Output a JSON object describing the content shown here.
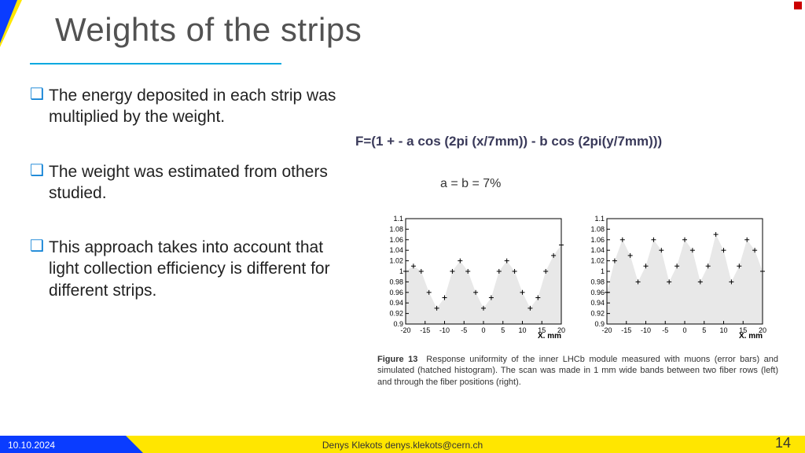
{
  "title": "Weights of the strips",
  "bullets": [
    "The energy deposited in each strip was multiplied by the weight.",
    "The weight was estimated from others studied.",
    "This approach takes into account that light collection efficiency is different for different strips."
  ],
  "formula": "F=(1 + - a cos (2pi (x/7mm)) - b cos (2pi(y/7mm)))",
  "param_text": "a = b = 7%",
  "caption_label": "Figure 13",
  "caption_body": "Response uniformity of the inner LHCb module measured with muons (error bars) and simulated (hatched histogram). The scan was made in 1 mm wide bands between two fiber rows (left) and through the fiber positions (right).",
  "footer": {
    "date": "10.10.2024",
    "author": "Denys Klekots denys.klekots@cern.ch",
    "page": "14"
  },
  "chart_common": {
    "ylim": [
      0.9,
      1.1
    ],
    "yticks": [
      0.9,
      0.92,
      0.94,
      0.96,
      0.98,
      1,
      1.02,
      1.04,
      1.06,
      1.08,
      1.1
    ],
    "xlim": [
      -20,
      20
    ],
    "xticks": [
      -20,
      -15,
      -10,
      -5,
      0,
      5,
      10,
      15,
      20
    ],
    "xlabel": "X. mm",
    "frame_color": "#000000",
    "tick_fontsize": 9,
    "data_color": "#000000",
    "fill_color": "#e6e6e6",
    "fill_opacity": 0.9,
    "marker": "+",
    "marker_size": 3
  },
  "chart_left": {
    "x": [
      -20,
      -18,
      -16,
      -14,
      -12,
      -10,
      -8,
      -6,
      -4,
      -2,
      0,
      2,
      4,
      6,
      8,
      10,
      12,
      14,
      16,
      18,
      20
    ],
    "y": [
      1.0,
      1.01,
      1.0,
      0.96,
      0.93,
      0.95,
      1.0,
      1.02,
      1.0,
      0.96,
      0.93,
      0.95,
      1.0,
      1.02,
      1.0,
      0.96,
      0.93,
      0.95,
      1.0,
      1.03,
      1.05
    ]
  },
  "chart_right": {
    "x": [
      -20,
      -18,
      -16,
      -14,
      -12,
      -10,
      -8,
      -6,
      -4,
      -2,
      0,
      2,
      4,
      6,
      8,
      10,
      12,
      14,
      16,
      18,
      20
    ],
    "y": [
      0.96,
      1.02,
      1.06,
      1.03,
      0.98,
      1.01,
      1.06,
      1.04,
      0.98,
      1.01,
      1.06,
      1.04,
      0.98,
      1.01,
      1.07,
      1.04,
      0.98,
      1.01,
      1.06,
      1.04,
      1.0
    ]
  }
}
